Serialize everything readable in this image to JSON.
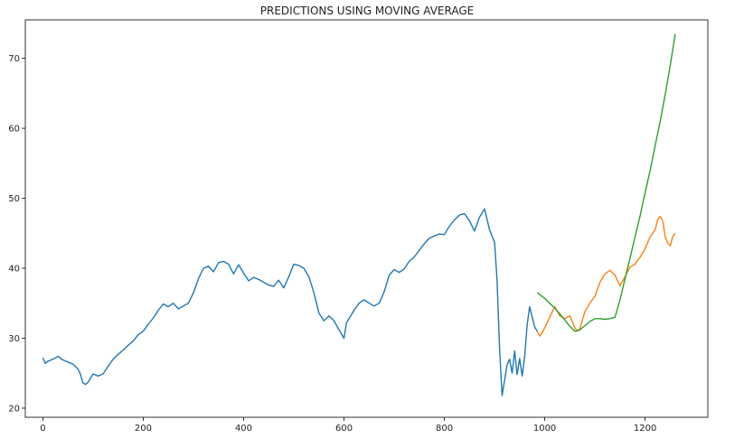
{
  "chart_data": {
    "type": "line",
    "title": "PREDICTIONS USING MOVING AVERAGE",
    "xlabel": "",
    "ylabel": "",
    "xlim": [
      -35,
      1325
    ],
    "ylim": [
      18.7,
      75.5
    ],
    "x_ticks": [
      0,
      200,
      400,
      600,
      800,
      1000,
      1200
    ],
    "x_tick_labels": [
      "0",
      "200",
      "400",
      "600",
      "800",
      "1000",
      "1200"
    ],
    "y_ticks": [
      20,
      30,
      40,
      50,
      60,
      70
    ],
    "y_tick_labels": [
      "20",
      "30",
      "40",
      "50",
      "60",
      "70"
    ],
    "grid": false,
    "legend": "none",
    "series": [
      {
        "color": "#1f77b4",
        "x": [
          0,
          5,
          10,
          20,
          30,
          40,
          50,
          60,
          70,
          75,
          80,
          85,
          90,
          95,
          100,
          110,
          120,
          130,
          140,
          150,
          160,
          170,
          180,
          190,
          200,
          210,
          220,
          230,
          240,
          250,
          260,
          270,
          280,
          290,
          300,
          310,
          320,
          330,
          340,
          350,
          360,
          370,
          380,
          390,
          400,
          410,
          420,
          430,
          440,
          450,
          460,
          470,
          480,
          490,
          500,
          510,
          520,
          530,
          540,
          550,
          560,
          570,
          580,
          590,
          600,
          605,
          610,
          620,
          630,
          640,
          650,
          660,
          670,
          680,
          690,
          700,
          710,
          720,
          730,
          740,
          750,
          760,
          770,
          780,
          790,
          800,
          810,
          820,
          830,
          840,
          850,
          860,
          870,
          880,
          890,
          900,
          905,
          910,
          915,
          920,
          925,
          930,
          935,
          940,
          945,
          950,
          955,
          960,
          965,
          970,
          975,
          980,
          985
        ],
        "y": [
          27.2,
          26.4,
          26.7,
          27.0,
          27.4,
          26.9,
          26.6,
          26.3,
          25.6,
          24.8,
          23.6,
          23.4,
          23.7,
          24.3,
          24.9,
          24.6,
          24.9,
          26.0,
          27.0,
          27.7,
          28.3,
          29.0,
          29.6,
          30.5,
          31.0,
          32.0,
          32.9,
          34.0,
          34.9,
          34.5,
          35.0,
          34.2,
          34.6,
          35.0,
          36.5,
          38.5,
          40.0,
          40.3,
          39.5,
          40.8,
          41.0,
          40.6,
          39.2,
          40.5,
          39.3,
          38.2,
          38.7,
          38.4,
          38.0,
          37.6,
          37.4,
          38.3,
          37.2,
          38.8,
          40.6,
          40.4,
          40.0,
          38.8,
          36.5,
          33.6,
          32.5,
          33.2,
          32.5,
          31.2,
          30.0,
          32.2,
          32.8,
          34.0,
          35.0,
          35.5,
          35.0,
          34.6,
          35.0,
          36.6,
          39.0,
          39.8,
          39.4,
          39.9,
          41.0,
          41.6,
          42.6,
          43.5,
          44.3,
          44.6,
          44.9,
          44.8,
          46.0,
          46.9,
          47.6,
          47.8,
          46.8,
          45.3,
          47.3,
          48.5,
          45.5,
          43.7,
          38.4,
          28.6,
          21.8,
          24.0,
          26.2,
          27.0,
          25.0,
          28.2,
          24.8,
          27.1,
          24.6,
          27.4,
          31.9,
          34.5,
          33.0,
          31.6,
          31.0
        ]
      },
      {
        "color": "#ff7f0e",
        "x": [
          985,
          990,
          995,
          1000,
          1010,
          1020,
          1030,
          1040,
          1050,
          1055,
          1060,
          1065,
          1070,
          1075,
          1080,
          1090,
          1100,
          1110,
          1120,
          1130,
          1140,
          1150,
          1160,
          1170,
          1180,
          1190,
          1200,
          1210,
          1220,
          1225,
          1230,
          1235,
          1240,
          1245,
          1250,
          1255,
          1260
        ],
        "y": [
          31.0,
          30.3,
          30.8,
          31.5,
          33.0,
          34.5,
          33.2,
          32.8,
          33.2,
          32.4,
          31.5,
          31.0,
          31.4,
          32.6,
          33.8,
          35.0,
          36.0,
          38.0,
          39.2,
          39.7,
          39.0,
          37.5,
          38.8,
          40.2,
          40.6,
          41.6,
          42.8,
          44.5,
          45.5,
          47.0,
          47.4,
          46.8,
          44.5,
          43.6,
          43.2,
          44.5,
          45.0
        ]
      },
      {
        "color": "#2ca02c",
        "x": [
          985,
          1000,
          1010,
          1020,
          1030,
          1040,
          1050,
          1060,
          1070,
          1080,
          1090,
          1100,
          1110,
          1120,
          1130,
          1140,
          1150,
          1160,
          1170,
          1180,
          1190,
          1200,
          1210,
          1220,
          1230,
          1240,
          1250,
          1260
        ],
        "y": [
          36.5,
          35.7,
          35.0,
          34.3,
          33.5,
          32.6,
          31.7,
          31.0,
          31.2,
          31.8,
          32.4,
          32.8,
          32.8,
          32.7,
          32.8,
          33.0,
          35.5,
          38.5,
          41.5,
          44.5,
          47.5,
          50.8,
          54.0,
          57.5,
          61.0,
          64.8,
          69.0,
          73.5
        ]
      }
    ]
  }
}
